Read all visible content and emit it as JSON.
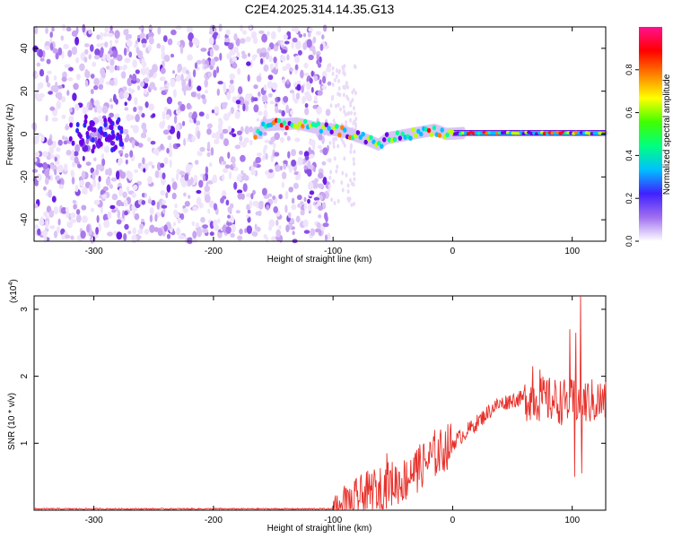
{
  "title": "C2E4.2025.314.14.35.G13",
  "colors": {
    "snr_line": "#e8302a",
    "axis": "#000000",
    "spectral_palette": [
      "#ffffff",
      "#e7d6f8",
      "#c99cf0",
      "#9a52e6",
      "#6a00e8",
      "#2020ff",
      "#00bfff",
      "#00ffa0",
      "#20ff20",
      "#c0ff00",
      "#ffff00",
      "#ff8000",
      "#ff0000",
      "#ff1090"
    ]
  },
  "chart_data": [
    {
      "id": "spectrogram",
      "type": "heatmap",
      "xlabel": "Height of straight line (km)",
      "ylabel": "Frequency (Hz)",
      "xlim": [
        -350,
        128
      ],
      "ylim": [
        -50,
        50
      ],
      "x_ticks": [
        -300,
        -200,
        -100,
        0,
        100
      ],
      "x_tick_labels": [
        "-300",
        "-200",
        "-100",
        "0",
        "100"
      ],
      "y_ticks": [
        -40,
        -20,
        0,
        20,
        40
      ],
      "y_tick_labels": [
        "-40",
        "-20",
        "0",
        "20",
        "40"
      ],
      "noise_region_x": [
        -350,
        -103
      ],
      "signal_track": [
        {
          "x": -160,
          "f": 4
        },
        {
          "x": -130,
          "f": 5
        },
        {
          "x": -115,
          "f": 3
        },
        {
          "x": -100,
          "f": 2
        },
        {
          "x": -90,
          "f": 1
        },
        {
          "x": -80,
          "f": -1
        },
        {
          "x": -70,
          "f": -3
        },
        {
          "x": -62,
          "f": -5
        },
        {
          "x": -55,
          "f": -2
        },
        {
          "x": -45,
          "f": -1
        },
        {
          "x": -35,
          "f": 0
        },
        {
          "x": -25,
          "f": 1
        },
        {
          "x": -15,
          "f": 2
        },
        {
          "x": -5,
          "f": 0
        },
        {
          "x": 10,
          "f": 0.5
        },
        {
          "x": 60,
          "f": 0.5
        },
        {
          "x": 100,
          "f": 0.5
        },
        {
          "x": 128,
          "f": 0.5
        }
      ],
      "colorbar": {
        "label": "Normalized spectral amplitude",
        "range": [
          0,
          1
        ],
        "ticks": [
          "0.0",
          "0.2",
          "0.4",
          "0.6",
          "0.8"
        ]
      }
    },
    {
      "id": "snr",
      "type": "line",
      "xlabel": "Height of straight line (km)",
      "ylabel": "SNR (10 * v/v)",
      "y_multiplier": "(x10",
      "y_multiplier_exp": "4",
      "y_multiplier_close": ")",
      "xlim": [
        -350,
        128
      ],
      "ylim": [
        0,
        3.2
      ],
      "x_ticks": [
        -300,
        -200,
        -100,
        0,
        100
      ],
      "x_tick_labels": [
        "-300",
        "-200",
        "-100",
        "0",
        "100"
      ],
      "y_ticks": [
        1,
        2,
        3
      ],
      "y_tick_labels": [
        "1",
        "2",
        "3"
      ],
      "trend": [
        {
          "x": -350,
          "y": 0.02
        },
        {
          "x": -100,
          "y": 0.02
        },
        {
          "x": -85,
          "y": 0.08
        },
        {
          "x": -75,
          "y": 0.2
        },
        {
          "x": -60,
          "y": 0.35
        },
        {
          "x": -40,
          "y": 0.45
        },
        {
          "x": -20,
          "y": 0.75
        },
        {
          "x": 0,
          "y": 1.0
        },
        {
          "x": 20,
          "y": 1.3
        },
        {
          "x": 35,
          "y": 1.55
        },
        {
          "x": 50,
          "y": 1.65
        },
        {
          "x": 65,
          "y": 1.68
        },
        {
          "x": 90,
          "y": 1.62
        },
        {
          "x": 128,
          "y": 1.62
        }
      ],
      "spikes": [
        {
          "x": -87,
          "y": 0.25
        },
        {
          "x": -55,
          "y": 0.85
        },
        {
          "x": -35,
          "y": 0.75
        },
        {
          "x": -30,
          "y": 0.9
        },
        {
          "x": -15,
          "y": 1.2
        },
        {
          "x": 67,
          "y": 2.15
        },
        {
          "x": 73,
          "y": 2.1
        },
        {
          "x": 98,
          "y": 2.7
        },
        {
          "x": 103,
          "y": 2.65
        },
        {
          "x": 107,
          "y": 3.2
        },
        {
          "x": 102,
          "y": 0.5
        },
        {
          "x": 108,
          "y": 0.55
        }
      ]
    }
  ]
}
